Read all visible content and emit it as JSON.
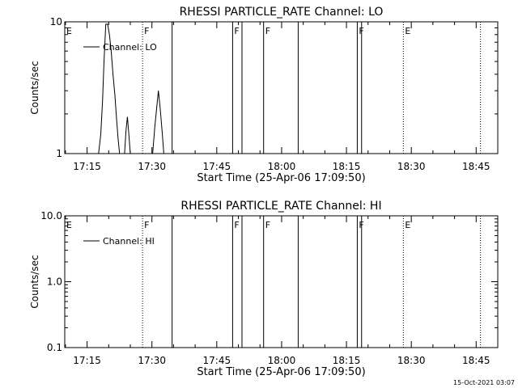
{
  "chart_data": [
    {
      "type": "line",
      "title": "RHESSI PARTICLE_RATE Channel: LO",
      "xlabel": "Start Time (25-Apr-06 17:09:50)",
      "ylabel": "Counts/sec",
      "yscale": "log",
      "ylim": [
        1,
        10
      ],
      "y_tick_labels": [
        "1",
        "10"
      ],
      "xlim": [
        "17:09:50",
        "18:50:00"
      ],
      "x_tick_labels": [
        "17:15",
        "17:30",
        "17:45",
        "18:00",
        "18:15",
        "18:30",
        "18:45"
      ],
      "legend": {
        "placement": "top-left",
        "entries": [
          "Channel: LO"
        ]
      },
      "series": [
        {
          "name": "Channel: LO",
          "color": "#000000",
          "x": [
            "17:17:40",
            "17:18:10",
            "17:18:35",
            "17:18:55",
            "17:19:20",
            "17:19:45",
            "17:20:10",
            "17:20:35",
            "17:21:00",
            "17:21:25",
            "17:21:50",
            "17:22:10",
            "17:22:30",
            "17:23:40",
            "17:24:00",
            "17:24:20",
            "17:24:40",
            "17:25:00",
            "17:30:10",
            "17:30:40",
            "17:31:05",
            "17:31:30",
            "17:31:55",
            "17:32:20",
            "17:32:45"
          ],
          "y": [
            1,
            1.4,
            2.5,
            5,
            9.6,
            9.6,
            8,
            6,
            4,
            2.8,
            1.8,
            1.3,
            1,
            1,
            1.5,
            1.9,
            1.4,
            1,
            1,
            1.6,
            2.2,
            3,
            2.2,
            1.5,
            1
          ]
        }
      ],
      "vertical_lines": [
        {
          "time": "17:27:50",
          "style": "dotted"
        },
        {
          "time": "17:34:40",
          "style": "solid"
        },
        {
          "time": "17:48:40",
          "style": "solid"
        },
        {
          "time": "17:50:50",
          "style": "solid"
        },
        {
          "time": "17:55:50",
          "style": "solid"
        },
        {
          "time": "18:03:50",
          "style": "solid"
        },
        {
          "time": "18:17:30",
          "style": "solid"
        },
        {
          "time": "18:18:30",
          "style": "solid"
        },
        {
          "time": "18:28:10",
          "style": "dotted"
        },
        {
          "time": "18:46:00",
          "style": "dotted"
        }
      ],
      "flags": [
        {
          "label": "E",
          "time": "17:09:50"
        },
        {
          "label": "F",
          "time": "17:27:50"
        },
        {
          "label": "F",
          "time": "17:48:40"
        },
        {
          "label": "F",
          "time": "17:55:50"
        },
        {
          "label": "F",
          "time": "18:17:30"
        },
        {
          "label": "E",
          "time": "18:28:10"
        }
      ]
    },
    {
      "type": "line",
      "title": "RHESSI PARTICLE_RATE Channel: HI",
      "xlabel": "Start Time (25-Apr-06 17:09:50)",
      "ylabel": "Counts/sec",
      "yscale": "log",
      "ylim": [
        0.1,
        10
      ],
      "y_tick_labels": [
        "0.1",
        "1.0",
        "10.0"
      ],
      "xlim": [
        "17:09:50",
        "18:50:00"
      ],
      "x_tick_labels": [
        "17:15",
        "17:30",
        "17:45",
        "18:00",
        "18:15",
        "18:30",
        "18:45"
      ],
      "legend": {
        "placement": "top-left",
        "entries": [
          "Channel: HI"
        ]
      },
      "series": [
        {
          "name": "Channel: HI",
          "color": "#000000",
          "x": [],
          "y": []
        }
      ],
      "vertical_lines": [
        {
          "time": "17:27:50",
          "style": "dotted"
        },
        {
          "time": "17:34:40",
          "style": "solid"
        },
        {
          "time": "17:48:40",
          "style": "solid"
        },
        {
          "time": "17:50:50",
          "style": "solid"
        },
        {
          "time": "17:55:50",
          "style": "solid"
        },
        {
          "time": "18:03:50",
          "style": "solid"
        },
        {
          "time": "18:17:30",
          "style": "solid"
        },
        {
          "time": "18:18:30",
          "style": "solid"
        },
        {
          "time": "18:28:10",
          "style": "dotted"
        },
        {
          "time": "18:46:00",
          "style": "dotted"
        }
      ],
      "flags": [
        {
          "label": "E",
          "time": "17:09:50"
        },
        {
          "label": "F",
          "time": "17:27:50"
        },
        {
          "label": "F",
          "time": "17:48:40"
        },
        {
          "label": "F",
          "time": "17:55:50"
        },
        {
          "label": "F",
          "time": "18:17:30"
        },
        {
          "label": "E",
          "time": "18:28:10"
        }
      ]
    }
  ],
  "footer": {
    "timestamp": "15-Oct-2021 03:07"
  }
}
